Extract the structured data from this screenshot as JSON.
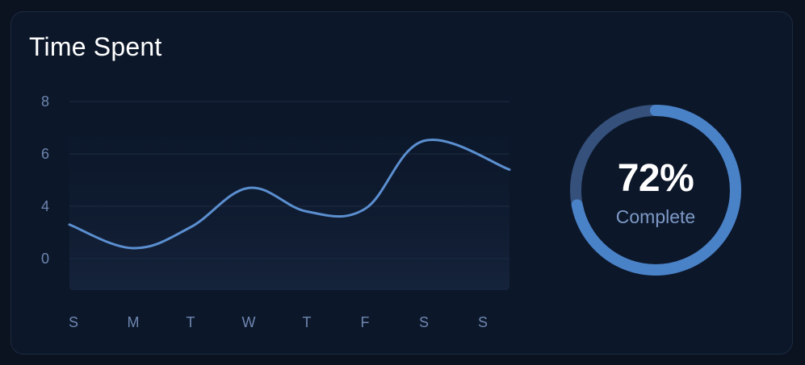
{
  "card": {
    "title": "Time Spent"
  },
  "chart_data": {
    "type": "area",
    "title": "Time Spent",
    "xlabel": "",
    "ylabel": "",
    "y_ticks": [
      "0",
      "4",
      "6",
      "8"
    ],
    "categories": [
      "S",
      "M",
      "T",
      "W",
      "T",
      "F",
      "S",
      "S"
    ],
    "values": [
      2.6,
      0.8,
      2.4,
      4.7,
      3.6,
      3.8,
      6.5,
      5.4
    ],
    "grid": true,
    "legend": "none"
  },
  "progress": {
    "value": 0.72,
    "label": "72%",
    "caption": "Complete"
  },
  "colors": {
    "background": "#0b1220",
    "card": "#0c172a",
    "line": "#5b8fd0",
    "ring_track": "#35507a",
    "ring_fill": "#4a82c8",
    "tick_text": "#6e86b0"
  }
}
